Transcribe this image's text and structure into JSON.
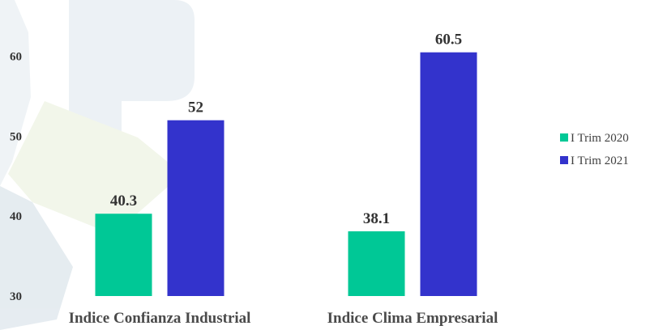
{
  "chart_data": {
    "type": "bar",
    "categories": [
      "Indice Confianza Industrial",
      "Indice Clima Empresarial"
    ],
    "series": [
      {
        "name": "I Trim 2020",
        "values": [
          40.3,
          38.1
        ],
        "labels": [
          "40.3",
          "38.1"
        ],
        "color": "#00c896"
      },
      {
        "name": "I Trim 2021",
        "values": [
          52,
          60.5
        ],
        "labels": [
          "52",
          "60.5"
        ],
        "color": "#3333cc"
      }
    ],
    "yticks": [
      "30",
      "40",
      "50",
      "60"
    ],
    "ylim": [
      30,
      63
    ],
    "grid": false,
    "legend_position": "right"
  }
}
